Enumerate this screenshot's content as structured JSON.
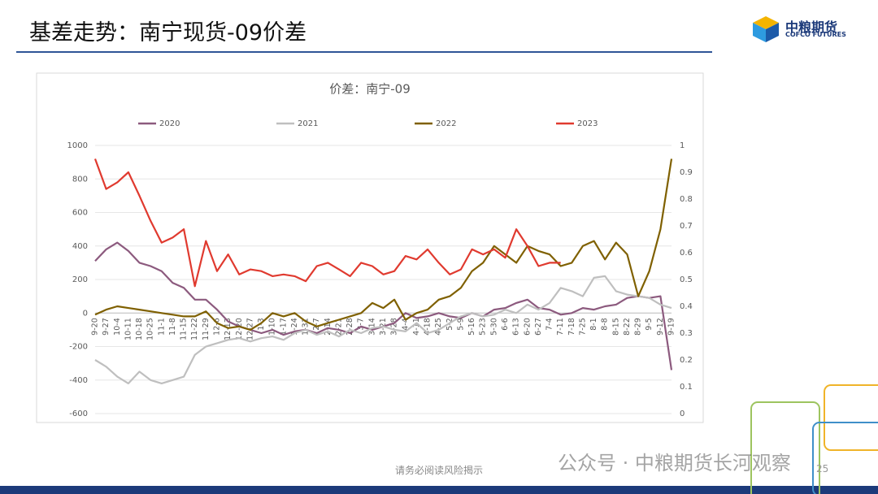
{
  "header": {
    "title": "基差走势：南宁现货-09价差",
    "logo_name": "中粮期货",
    "logo_english": "COFCO FUTURES"
  },
  "footer": {
    "disclaimer": "请务必阅读风险揭示",
    "watermark": "公众号 · 中粮期货长河观察",
    "page_number": "25"
  },
  "chart_data": {
    "type": "line",
    "title": "价差：南宁-09",
    "categories": [
      "9-20",
      "9-27",
      "10-4",
      "10-11",
      "10-18",
      "10-25",
      "11-1",
      "11-8",
      "11-15",
      "11-22",
      "11-29",
      "12-6",
      "12-13",
      "12-20",
      "12-27",
      "1-3",
      "1-10",
      "1-17",
      "1-24",
      "1-31",
      "2-7",
      "2-14",
      "2-21",
      "2-28",
      "3-7",
      "3-14",
      "3-21",
      "3-28",
      "4-4",
      "4-11",
      "4-18",
      "4-25",
      "5-2",
      "5-9",
      "5-16",
      "5-23",
      "5-30",
      "6-6",
      "6-13",
      "6-20",
      "6-27",
      "7-4",
      "7-11",
      "7-18",
      "7-25",
      "8-1",
      "8-8",
      "8-15",
      "8-22",
      "8-29",
      "9-5",
      "9-12",
      "9-19"
    ],
    "series": [
      {
        "name": "2020",
        "color": "#8c5a7e",
        "values": [
          310,
          380,
          420,
          370,
          300,
          280,
          250,
          180,
          150,
          80,
          80,
          20,
          -50,
          -80,
          -100,
          -120,
          -100,
          -130,
          -110,
          -100,
          -120,
          -90,
          -100,
          -120,
          -80,
          -100,
          -80,
          -60,
          0,
          -30,
          -20,
          0,
          -20,
          -30,
          0,
          -20,
          20,
          30,
          60,
          80,
          30,
          20,
          -10,
          0,
          30,
          20,
          40,
          50,
          90,
          100,
          90,
          100,
          -340
        ]
      },
      {
        "name": "2021",
        "color": "#bfbfbf",
        "values": [
          -280,
          -320,
          -380,
          -420,
          -350,
          -400,
          -420,
          -400,
          -380,
          -250,
          -200,
          -180,
          -160,
          -150,
          -170,
          -150,
          -140,
          -160,
          -120,
          -100,
          -130,
          -110,
          -140,
          -100,
          -120,
          -90,
          -80,
          -100,
          -110,
          -60,
          -120,
          -100,
          -60,
          -20,
          0,
          -20,
          -10,
          20,
          0,
          50,
          20,
          60,
          150,
          130,
          100,
          210,
          220,
          130,
          110,
          100,
          90,
          50,
          30
        ]
      },
      {
        "name": "2022",
        "color": "#7f6000",
        "values": [
          -10,
          20,
          40,
          30,
          20,
          10,
          0,
          -10,
          -20,
          -20,
          10,
          -60,
          -90,
          -80,
          -100,
          -60,
          0,
          -20,
          0,
          -50,
          -80,
          -60,
          -40,
          -20,
          0,
          60,
          30,
          80,
          -40,
          0,
          20,
          80,
          100,
          150,
          250,
          300,
          400,
          350,
          300,
          400,
          370,
          350,
          280,
          300,
          400,
          430,
          320,
          420,
          350,
          100,
          250,
          500,
          920
        ]
      },
      {
        "name": "2023",
        "color": "#e03a2f",
        "values": [
          920,
          740,
          780,
          840,
          700,
          550,
          420,
          450,
          500,
          160,
          430,
          250,
          350,
          230,
          260,
          250,
          220,
          230,
          220,
          190,
          280,
          300,
          260,
          220,
          300,
          280,
          230,
          250,
          340,
          320,
          380,
          300,
          230,
          260,
          380,
          350,
          380,
          330,
          500,
          400,
          280,
          300,
          300,
          null,
          null,
          null,
          null,
          null,
          null,
          null,
          null,
          null,
          null
        ]
      }
    ],
    "ylim": [
      -600,
      1000
    ],
    "yticks": [
      -600,
      -400,
      -200,
      0,
      200,
      400,
      600,
      800,
      1000
    ],
    "y2lim": [
      0,
      1
    ],
    "y2ticks": [
      0,
      0.1,
      0.2,
      0.3,
      0.4,
      0.5,
      0.6,
      0.7,
      0.8,
      0.9,
      1
    ],
    "grid": true,
    "legend": "top"
  }
}
